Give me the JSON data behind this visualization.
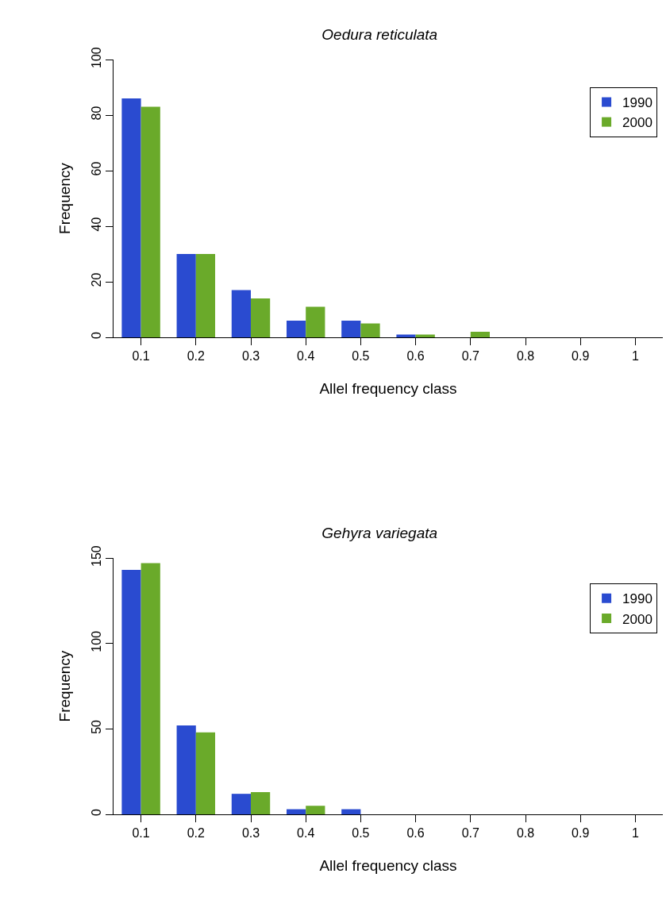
{
  "chart_data": [
    {
      "type": "bar",
      "title": "Oedura reticulata",
      "xlabel": "Allel frequency class",
      "ylabel": "Frequency",
      "categories": [
        "0.1",
        "0.2",
        "0.3",
        "0.4",
        "0.5",
        "0.6",
        "0.7",
        "0.8",
        "0.9",
        "1"
      ],
      "series": [
        {
          "name": "1990",
          "color": "#2a4bd0",
          "values": [
            86,
            30,
            17,
            6,
            6,
            1,
            0,
            0,
            0,
            0
          ]
        },
        {
          "name": "2000",
          "color": "#6aaa2a",
          "values": [
            83,
            30,
            14,
            11,
            5,
            1,
            2,
            0,
            0,
            0
          ]
        }
      ],
      "ylim": [
        0,
        100
      ],
      "yticks": [
        0,
        20,
        40,
        60,
        80,
        100
      ],
      "grid": false,
      "legend": "top right"
    },
    {
      "type": "bar",
      "title": "Gehyra variegata",
      "xlabel": "Allel frequency class",
      "ylabel": "Frequency",
      "categories": [
        "0.1",
        "0.2",
        "0.3",
        "0.4",
        "0.5",
        "0.6",
        "0.7",
        "0.8",
        "0.9",
        "1"
      ],
      "series": [
        {
          "name": "1990",
          "color": "#2a4bd0",
          "values": [
            143,
            52,
            12,
            3,
            3,
            0,
            0,
            0,
            0,
            0
          ]
        },
        {
          "name": "2000",
          "color": "#6aaa2a",
          "values": [
            147,
            48,
            13,
            5,
            0,
            0,
            0,
            0,
            0,
            0
          ]
        }
      ],
      "ylim": [
        0,
        150
      ],
      "yticks": [
        0,
        50,
        100,
        150
      ],
      "grid": false,
      "legend": "top right"
    }
  ]
}
